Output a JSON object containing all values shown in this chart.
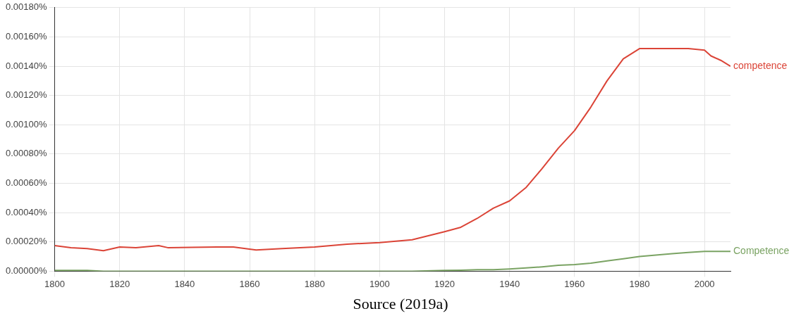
{
  "chart_data": {
    "type": "line",
    "x": [
      1800,
      1805,
      1810,
      1815,
      1820,
      1825,
      1832,
      1835,
      1850,
      1855,
      1862,
      1870,
      1880,
      1890,
      1900,
      1910,
      1920,
      1925,
      1930,
      1935,
      1940,
      1945,
      1950,
      1955,
      1960,
      1965,
      1970,
      1975,
      1980,
      1985,
      1990,
      1995,
      2000,
      2002,
      2005,
      2008
    ],
    "series": [
      {
        "name": "competence",
        "color": "#db4437",
        "values": [
          0.000175,
          0.00016,
          0.000155,
          0.00014,
          0.000165,
          0.00016,
          0.000175,
          0.00016,
          0.000165,
          0.000165,
          0.000145,
          0.000155,
          0.000165,
          0.000185,
          0.000195,
          0.000215,
          0.00027,
          0.0003,
          0.00036,
          0.00043,
          0.00048,
          0.00057,
          0.0007,
          0.00084,
          0.00096,
          0.00112,
          0.0013,
          0.00145,
          0.00152,
          0.00152,
          0.00152,
          0.00152,
          0.00151,
          0.00147,
          0.00144,
          0.0014
        ]
      },
      {
        "name": "Competence",
        "color": "#7aa363",
        "values": [
          5e-06,
          5e-06,
          5e-06,
          0,
          0,
          0,
          0,
          0,
          0,
          0,
          0,
          0,
          0,
          0,
          0,
          0,
          5e-06,
          7e-06,
          1e-05,
          1e-05,
          1.5e-05,
          2.2e-05,
          3e-05,
          4e-05,
          4.5e-05,
          5.5e-05,
          7e-05,
          8.5e-05,
          0.0001,
          0.00011,
          0.00012,
          0.000128,
          0.000135,
          0.000135,
          0.000135,
          0.000135
        ]
      }
    ],
    "xlim": [
      1800,
      2008
    ],
    "xticks": [
      1800,
      1820,
      1840,
      1860,
      1880,
      1900,
      1920,
      1940,
      1960,
      1980,
      2000
    ],
    "ylim": [
      0,
      0.0018
    ],
    "yticks": [
      {
        "value": 0,
        "label": "0.00000%"
      },
      {
        "value": 0.0002,
        "label": "0.00020%"
      },
      {
        "value": 0.0004,
        "label": "0.00040%"
      },
      {
        "value": 0.0006,
        "label": "0.00060%"
      },
      {
        "value": 0.0008,
        "label": "0.00080%"
      },
      {
        "value": 0.001,
        "label": "0.00100%"
      },
      {
        "value": 0.0012,
        "label": "0.00120%"
      },
      {
        "value": 0.0014,
        "label": "0.00140%"
      },
      {
        "value": 0.0016,
        "label": "0.00160%"
      },
      {
        "value": 0.0018,
        "label": "0.00180%"
      }
    ],
    "grid": true,
    "legend": false,
    "marker": "none",
    "line_style": "solid",
    "annotations": [
      "Source (2019a)"
    ]
  }
}
